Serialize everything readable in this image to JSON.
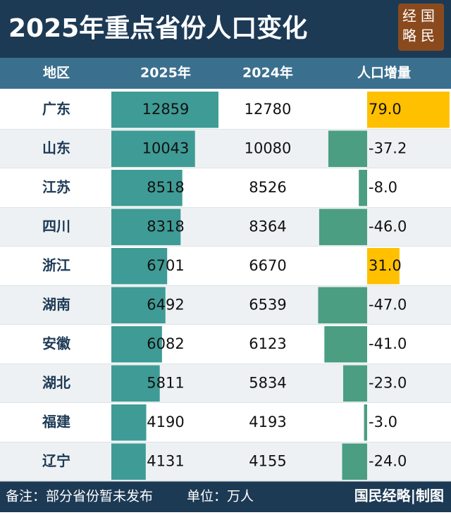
{
  "header": {
    "title": "2025年重点省份人口变化",
    "logo": [
      "经国",
      "略民"
    ]
  },
  "table": {
    "columns": [
      "地区",
      "2025年",
      "2024年",
      "人口增量"
    ],
    "rows": [
      {
        "region": "广东",
        "y2025": 12859,
        "y2024": 12780,
        "change": 79,
        "change_label": "79.0"
      },
      {
        "region": "山东",
        "y2025": 10043,
        "y2024": 10080,
        "change": -37.2,
        "change_label": "-37.2"
      },
      {
        "region": "江苏",
        "y2025": 8518,
        "y2024": 8526,
        "change": -8,
        "change_label": "-8.0"
      },
      {
        "region": "四川",
        "y2025": 8318,
        "y2024": 8364,
        "change": -46,
        "change_label": "-46.0"
      },
      {
        "region": "浙江",
        "y2025": 6701,
        "y2024": 6670,
        "change": 31,
        "change_label": "31.0"
      },
      {
        "region": "湖南",
        "y2025": 6492,
        "y2024": 6539,
        "change": -47,
        "change_label": "-47.0"
      },
      {
        "region": "安徽",
        "y2025": 6082,
        "y2024": 6123,
        "change": -41,
        "change_label": "-41.0"
      },
      {
        "region": "湖北",
        "y2025": 5811,
        "y2024": 5834,
        "change": -23,
        "change_label": "-23.0"
      },
      {
        "region": "福建",
        "y2025": 4190,
        "y2024": 4193,
        "change": -3,
        "change_label": "-3.0"
      },
      {
        "region": "辽宁",
        "y2025": 4131,
        "y2024": 4155,
        "change": -24,
        "change_label": "-24.0"
      }
    ]
  },
  "footer": {
    "note": "备注：部分省份暂未发布",
    "unit": "单位：万人",
    "credit": "国民经略|制图"
  }
}
